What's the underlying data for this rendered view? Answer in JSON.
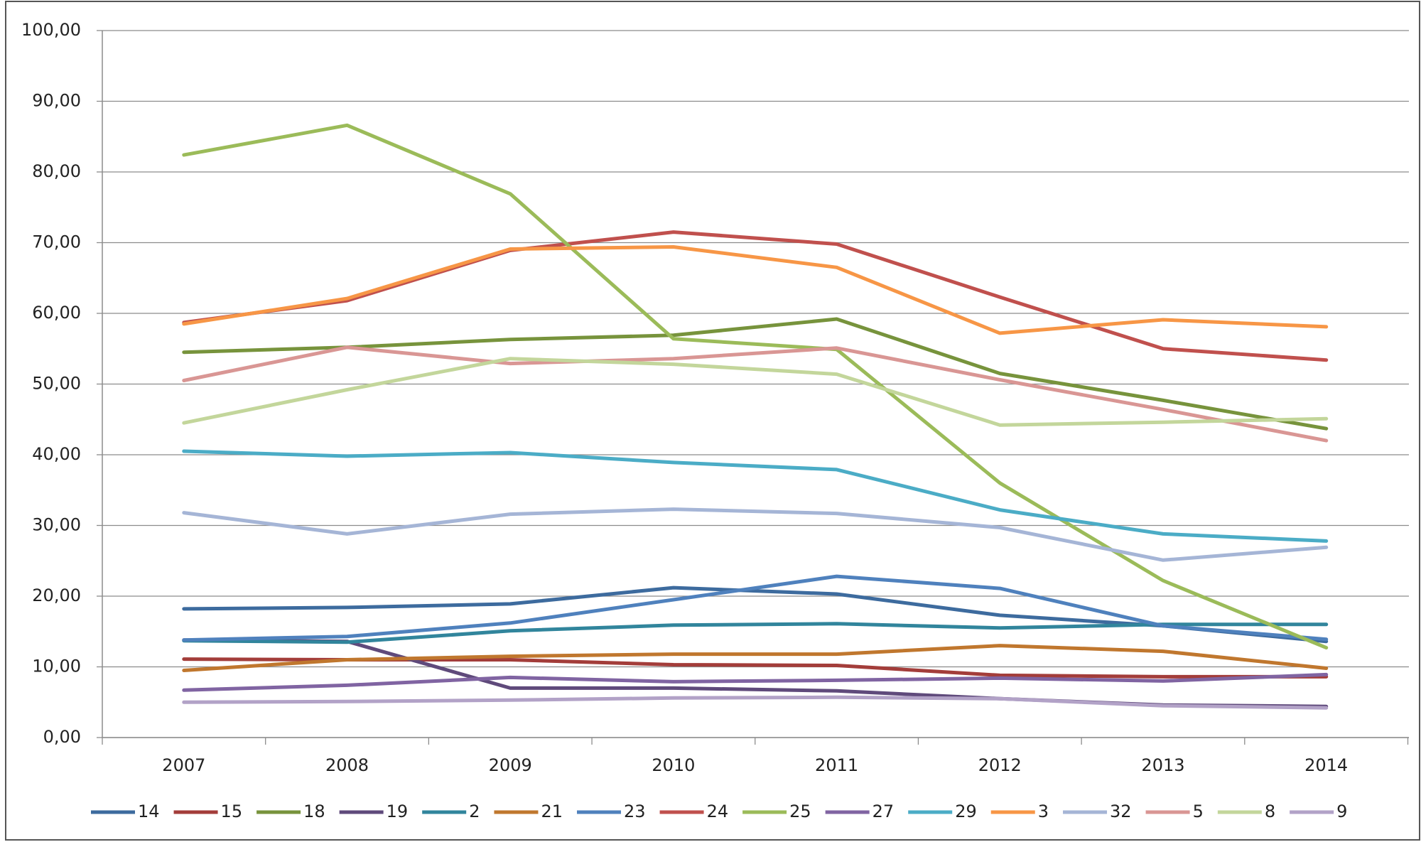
{
  "chart_data": {
    "type": "line",
    "x": [
      "2007",
      "2008",
      "2009",
      "2010",
      "2011",
      "2012",
      "2013",
      "2014"
    ],
    "ylim": [
      0,
      100
    ],
    "yticks": [
      {
        "value": 0,
        "label": "0,00"
      },
      {
        "value": 10,
        "label": "10,00"
      },
      {
        "value": 20,
        "label": "20,00"
      },
      {
        "value": 30,
        "label": "30,00"
      },
      {
        "value": 40,
        "label": "40,00"
      },
      {
        "value": 50,
        "label": "50,00"
      },
      {
        "value": 60,
        "label": "60,00"
      },
      {
        "value": 70,
        "label": "70,00"
      },
      {
        "value": 80,
        "label": "80,00"
      },
      {
        "value": 90,
        "label": "90,00"
      },
      {
        "value": 100,
        "label": "100,00"
      }
    ],
    "grid": true,
    "legend": "bottom",
    "series": [
      {
        "name": "14",
        "color": "#3d6b9e",
        "values": [
          18.2,
          18.4,
          18.9,
          21.2,
          20.3,
          17.3,
          15.8,
          13.6
        ]
      },
      {
        "name": "15",
        "color": "#a33d3a",
        "values": [
          11.1,
          11.0,
          11.0,
          10.3,
          10.2,
          8.8,
          8.6,
          8.6
        ]
      },
      {
        "name": "18",
        "color": "#77933c",
        "values": [
          54.5,
          55.2,
          56.3,
          56.9,
          59.2,
          51.5,
          47.7,
          43.7
        ]
      },
      {
        "name": "19",
        "color": "#5f4a7b",
        "values": [
          13.8,
          13.6,
          7.0,
          7.0,
          6.6,
          5.5,
          4.6,
          4.4
        ]
      },
      {
        "name": "2",
        "color": "#31859c",
        "values": [
          13.7,
          13.5,
          15.1,
          15.9,
          16.1,
          15.5,
          16.0,
          16.0
        ]
      },
      {
        "name": "21",
        "color": "#c0772e",
        "values": [
          9.5,
          11.0,
          11.5,
          11.8,
          11.8,
          13.0,
          12.2,
          9.8
        ]
      },
      {
        "name": "23",
        "color": "#4f81bd",
        "values": [
          13.8,
          14.3,
          16.2,
          19.5,
          22.8,
          21.1,
          15.8,
          13.9
        ]
      },
      {
        "name": "24",
        "color": "#c0504d",
        "values": [
          58.7,
          61.8,
          68.9,
          71.5,
          69.8,
          62.3,
          55.0,
          53.4
        ]
      },
      {
        "name": "25",
        "color": "#9bbb59",
        "values": [
          82.4,
          86.6,
          76.9,
          56.4,
          54.9,
          36.0,
          22.2,
          12.7
        ]
      },
      {
        "name": "27",
        "color": "#8064a2",
        "values": [
          6.7,
          7.4,
          8.5,
          7.9,
          8.1,
          8.4,
          8.0,
          8.9
        ]
      },
      {
        "name": "29",
        "color": "#4bacc6",
        "values": [
          40.5,
          39.8,
          40.3,
          38.9,
          37.9,
          32.2,
          28.8,
          27.8
        ]
      },
      {
        "name": "3",
        "color": "#f79646",
        "values": [
          58.5,
          62.1,
          69.1,
          69.4,
          66.5,
          57.2,
          59.1,
          58.1
        ]
      },
      {
        "name": "32",
        "color": "#a5b5d6",
        "values": [
          31.8,
          28.8,
          31.6,
          32.3,
          31.7,
          29.7,
          25.1,
          26.9
        ]
      },
      {
        "name": "5",
        "color": "#d99694",
        "values": [
          50.5,
          55.2,
          52.9,
          53.6,
          55.1,
          50.6,
          46.4,
          42.0
        ]
      },
      {
        "name": "8",
        "color": "#c3d69b",
        "values": [
          44.5,
          49.2,
          53.6,
          52.8,
          51.4,
          44.2,
          44.6,
          45.1
        ]
      },
      {
        "name": "9",
        "color": "#b2a2c7",
        "values": [
          5.0,
          5.1,
          5.3,
          5.6,
          5.7,
          5.5,
          4.5,
          4.2
        ]
      }
    ]
  }
}
